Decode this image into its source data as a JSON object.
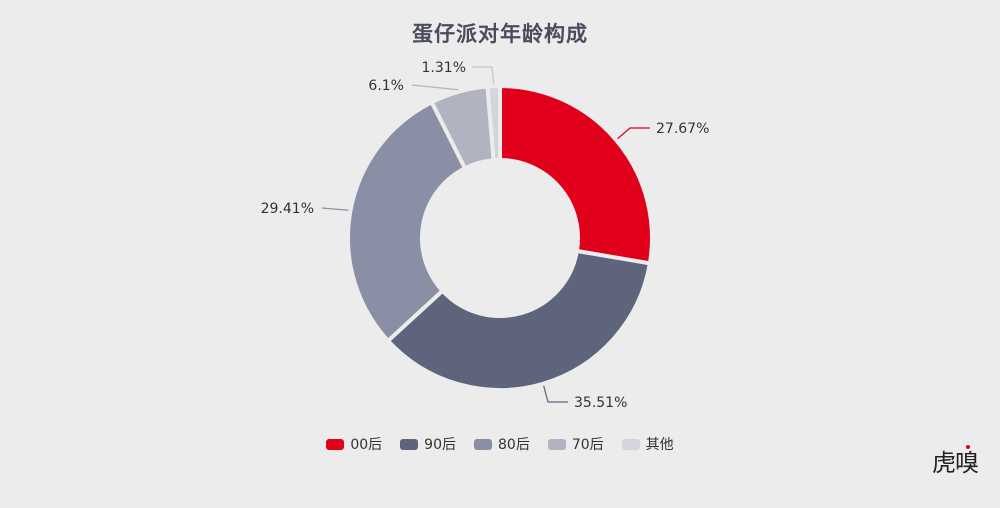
{
  "title": "蛋仔派对年龄构成",
  "watermark": {
    "text": "虎嗅",
    "accent_color": "#e0001b"
  },
  "colors": {
    "background": "#ececec",
    "gap": "#ececec"
  },
  "legend": {
    "items": [
      {
        "label": "00后",
        "color": "#e0001b"
      },
      {
        "label": "90后",
        "color": "#5f647d"
      },
      {
        "label": "80后",
        "color": "#8b8fa6"
      },
      {
        "label": "70后",
        "color": "#b1b3c0"
      },
      {
        "label": "其他",
        "color": "#d4d5da"
      }
    ]
  },
  "chart_data": {
    "type": "pie",
    "variant": "donut",
    "title": "蛋仔派对年龄构成",
    "categories": [
      "00后",
      "90后",
      "80后",
      "70后",
      "其他"
    ],
    "values": [
      27.67,
      35.51,
      29.41,
      6.1,
      1.31
    ],
    "labels": [
      "27.67%",
      "35.51%",
      "29.41%",
      "6.1%",
      "1.31%"
    ],
    "colors": [
      "#e0001b",
      "#5f647d",
      "#8b8fa6",
      "#b1b3c0",
      "#d4d5da"
    ],
    "start_angle_deg": 0,
    "direction": "clockwise",
    "center": [
      500,
      238
    ],
    "outer_radius": 152,
    "inner_radius": 78,
    "legend_position": "bottom"
  }
}
